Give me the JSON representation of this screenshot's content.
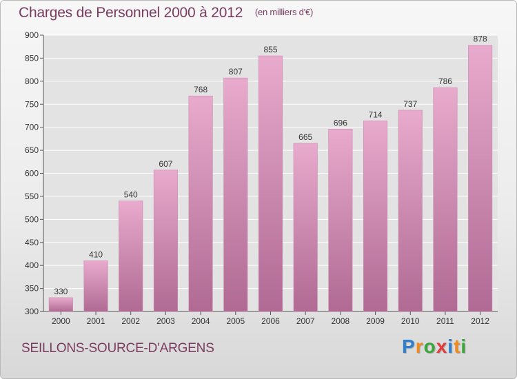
{
  "header": {
    "title": "Charges de Personnel 2000 à 2012",
    "subtitle": "(en milliers d'€)"
  },
  "footer": {
    "city": "SEILLONS-SOURCE-D'ARGENS",
    "logo": {
      "letters": [
        "P",
        "r",
        "o",
        "x",
        "i",
        "t",
        "i"
      ],
      "colors": [
        "#2f7fd1",
        "#f08a1c",
        "#3aa63a",
        "#e23b3b",
        "#2f7fd1",
        "#f08a1c",
        "#3aa63a"
      ]
    }
  },
  "colors": {
    "bar_light": "#e8aacd",
    "bar_dark": "#b06a93",
    "grid": "#ffffff",
    "text": "#333333"
  },
  "chart_data": {
    "type": "bar",
    "categories": [
      "2000",
      "2001",
      "2002",
      "2003",
      "2004",
      "2005",
      "2006",
      "2007",
      "2008",
      "2009",
      "2010",
      "2011",
      "2012"
    ],
    "values": [
      330,
      410,
      540,
      607,
      768,
      807,
      855,
      665,
      696,
      714,
      737,
      786,
      878
    ],
    "title": "Charges de Personnel 2000 à 2012",
    "xlabel": "",
    "ylabel": "",
    "ylim": [
      300,
      900
    ],
    "yticks": [
      300,
      350,
      400,
      450,
      500,
      550,
      600,
      650,
      700,
      750,
      800,
      850,
      900
    ],
    "grid": true,
    "data_labels": true
  }
}
